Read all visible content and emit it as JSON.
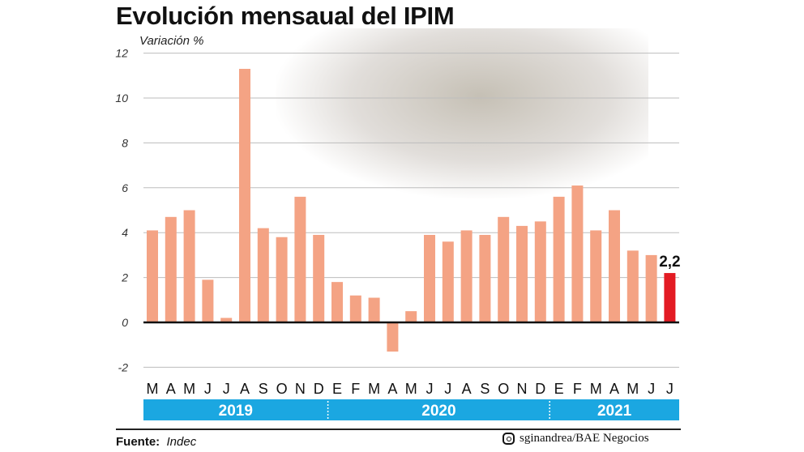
{
  "chart_data": {
    "type": "bar",
    "title": "Evolución mensaual del IPIM",
    "ylabel": "Variación %",
    "ylim": [
      -2,
      12
    ],
    "yticks": [
      -2,
      0,
      2,
      4,
      6,
      8,
      10,
      12
    ],
    "grid": true,
    "categories": [
      "M",
      "A",
      "M",
      "J",
      "J",
      "A",
      "S",
      "O",
      "N",
      "D",
      "E",
      "F",
      "M",
      "A",
      "M",
      "J",
      "J",
      "A",
      "S",
      "O",
      "N",
      "D",
      "E",
      "F",
      "M",
      "A",
      "M",
      "J",
      "J"
    ],
    "years": [
      {
        "label": "2019",
        "months": 10
      },
      {
        "label": "2020",
        "months": 12
      },
      {
        "label": "2021",
        "months": 7
      }
    ],
    "values": [
      4.1,
      4.7,
      5.0,
      1.9,
      0.2,
      11.3,
      4.2,
      3.8,
      5.6,
      3.9,
      1.8,
      1.2,
      1.1,
      -1.3,
      0.5,
      3.9,
      3.6,
      4.1,
      3.9,
      4.7,
      4.3,
      4.5,
      5.6,
      6.1,
      4.1,
      5.0,
      3.2,
      3.0,
      2.2
    ],
    "highlight_label": "2,2",
    "colors": {
      "bar": "#f4a384",
      "highlight": "#e31b23",
      "year_band": "#1ba7e1"
    }
  },
  "footer": {
    "source_label": "Fuente:",
    "source_value": "Indec",
    "credit": "sginandrea/BAE Negocios",
    "credit_icon": "instagram-icon"
  }
}
